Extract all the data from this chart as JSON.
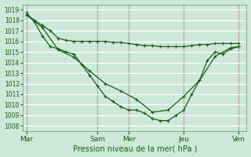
{
  "bg_color": "#cde8d8",
  "grid_white_color": "#ffffff",
  "grid_pink_color": "#e8c8cc",
  "line_color": "#1a5c1a",
  "ylim": [
    1007.5,
    1019.5
  ],
  "ytick_min": 1008,
  "ytick_max": 1019,
  "xlabel": "Pression niveau de la mer( hPa )",
  "day_labels": [
    "Mar",
    "Sam",
    "Mer",
    "Jeu",
    "Ven"
  ],
  "day_positions": [
    0,
    9,
    13,
    20,
    27
  ],
  "xlim": [
    -0.5,
    28
  ],
  "num_x_gridlines": 28,
  "line1_x": [
    0,
    1,
    2,
    3,
    4,
    5,
    6,
    7,
    8,
    9,
    10,
    11,
    12,
    13,
    14,
    15,
    16,
    17,
    18,
    19,
    20,
    21,
    22,
    23,
    24,
    25,
    26,
    27
  ],
  "line1_y": [
    1018.5,
    1018.0,
    1017.5,
    1017.0,
    1016.3,
    1016.1,
    1016.0,
    1016.0,
    1016.0,
    1016.0,
    1016.0,
    1015.9,
    1015.9,
    1015.8,
    1015.7,
    1015.6,
    1015.6,
    1015.5,
    1015.5,
    1015.5,
    1015.5,
    1015.6,
    1015.7,
    1015.7,
    1015.8,
    1015.8,
    1015.8,
    1015.8
  ],
  "line2_x": [
    0,
    1,
    2,
    3,
    4,
    5,
    6,
    7,
    8,
    9,
    10,
    11,
    12,
    13,
    14,
    15,
    16,
    17,
    18,
    19,
    20,
    21,
    22,
    23,
    24,
    25,
    26,
    27
  ],
  "line2_y": [
    1018.7,
    1017.8,
    1016.5,
    1015.5,
    1015.3,
    1015.0,
    1014.8,
    1013.8,
    1012.8,
    1011.8,
    1010.8,
    1010.3,
    1009.8,
    1009.5,
    1009.5,
    1009.2,
    1008.7,
    1008.5,
    1008.5,
    1009.0,
    1009.5,
    1011.0,
    1012.3,
    1014.2,
    1015.0,
    1014.8,
    1015.3,
    1015.5
  ],
  "line3_x": [
    0,
    2,
    4,
    6,
    8,
    10,
    12,
    14,
    16,
    18,
    20,
    22,
    24,
    26,
    27
  ],
  "line3_y": [
    1018.5,
    1017.3,
    1015.2,
    1014.5,
    1013.2,
    1012.0,
    1011.3,
    1010.5,
    1009.3,
    1009.5,
    1010.8,
    1012.3,
    1014.6,
    1015.4,
    1015.5
  ]
}
